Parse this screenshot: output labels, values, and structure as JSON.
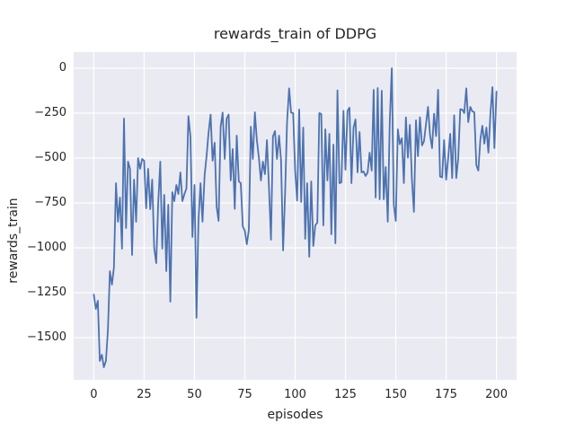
{
  "chart_data": {
    "type": "line",
    "title": "rewards_train of DDPG",
    "xlabel": "episodes",
    "ylabel": "rewards_train",
    "grid": true,
    "legend_position": "none",
    "xlim": [
      -10,
      210
    ],
    "ylim": [
      -1735,
      90
    ],
    "x_ticks": {
      "values": [
        0,
        25,
        50,
        75,
        100,
        125,
        150,
        175,
        200
      ],
      "labels": [
        "0",
        "25",
        "50",
        "75",
        "100",
        "125",
        "150",
        "175",
        "200"
      ]
    },
    "y_ticks": {
      "values": [
        0,
        -250,
        -500,
        -750,
        -1000,
        -1250,
        -1500
      ],
      "labels": [
        "0",
        "−250",
        "−500",
        "−750",
        "−1000",
        "−1250",
        "−1500"
      ]
    },
    "style": {
      "figure_background": "#ffffff",
      "axes_background": "#eaeaf2",
      "grid_color": "#ffffff",
      "line_color": "#4c72b0",
      "text_color": "#262626"
    },
    "series": [
      {
        "name": "rewards_train",
        "x_start": 0,
        "x_step": 1,
        "values": [
          -1260,
          -1340,
          -1295,
          -1630,
          -1595,
          -1665,
          -1630,
          -1460,
          -1130,
          -1205,
          -1110,
          -640,
          -855,
          -720,
          -1005,
          -280,
          -890,
          -520,
          -560,
          -1040,
          -620,
          -855,
          -500,
          -560,
          -505,
          -515,
          -780,
          -560,
          -785,
          -620,
          -1000,
          -1085,
          -750,
          -520,
          -1005,
          -705,
          -1130,
          -760,
          -1300,
          -690,
          -740,
          -650,
          -700,
          -580,
          -740,
          -700,
          -670,
          -267,
          -383,
          -940,
          -650,
          -1390,
          -850,
          -640,
          -855,
          -600,
          -490,
          -360,
          -258,
          -515,
          -415,
          -770,
          -850,
          -325,
          -247,
          -505,
          -280,
          -258,
          -625,
          -450,
          -783,
          -375,
          -630,
          -640,
          -880,
          -905,
          -980,
          -900,
          -325,
          -505,
          -245,
          -400,
          -500,
          -625,
          -520,
          -590,
          -400,
          -665,
          -955,
          -380,
          -350,
          -505,
          -375,
          -512,
          -1015,
          -700,
          -300,
          -112,
          -247,
          -250,
          -570,
          -737,
          -230,
          -745,
          -330,
          -950,
          -640,
          -1050,
          -630,
          -990,
          -875,
          -860,
          -250,
          -255,
          -875,
          -340,
          -625,
          -365,
          -925,
          -425,
          -975,
          -123,
          -640,
          -635,
          -237,
          -565,
          -237,
          -220,
          -640,
          -330,
          -285,
          -580,
          -355,
          -580,
          -575,
          -600,
          -580,
          -470,
          -570,
          -120,
          -720,
          -110,
          -730,
          -125,
          -730,
          -550,
          -855,
          -300,
          0,
          -760,
          -850,
          -340,
          -423,
          -390,
          -640,
          -273,
          -498,
          -315,
          -623,
          -800,
          -290,
          -490,
          -273,
          -430,
          -407,
          -310,
          -215,
          -370,
          -445,
          -253,
          -378,
          -120,
          -603,
          -608,
          -400,
          -620,
          -503,
          -365,
          -612,
          -262,
          -612,
          -503,
          -228,
          -230,
          -250,
          -112,
          -300,
          -215,
          -240,
          -245,
          -540,
          -570,
          -395,
          -320,
          -420,
          -330,
          -470,
          -250,
          -105,
          -445,
          -130
        ]
      }
    ]
  }
}
